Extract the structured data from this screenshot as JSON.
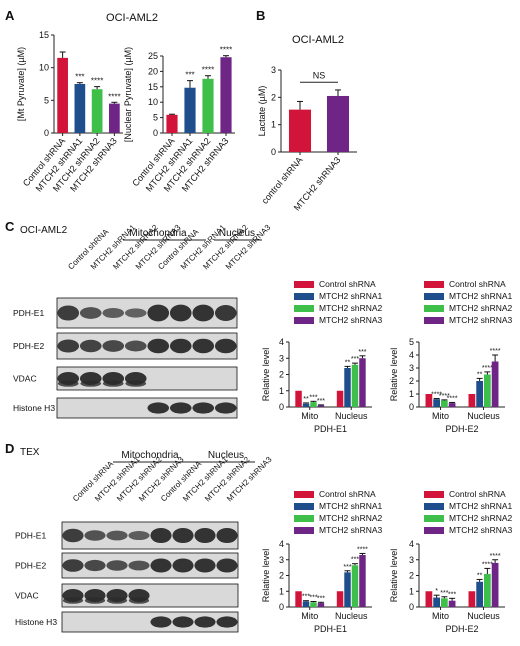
{
  "colors": {
    "control": "#d2143a",
    "sh1": "#1f4e8c",
    "sh2": "#3dbf4a",
    "sh3": "#6e2585",
    "axis": "#222222",
    "blot_bg": "#d9d9d9",
    "band": "#2a2a2a"
  },
  "panels": {
    "A": "A",
    "B": "B",
    "C": "C",
    "D": "D"
  },
  "legend_labels": [
    "Control shRNA",
    "MTCH2 shRNA1",
    "MTCH2 shRNA2",
    "MTCH2 shRNA3"
  ],
  "blots": {
    "C": {
      "cell_line": "OCI-AML2",
      "group_mito": "Mitochondria",
      "group_nuc": "Nucleus",
      "lanes": [
        "Control shRNA",
        "MTCH2 shRNA1",
        "MTCH2 shRNA2",
        "MTCH2 shRNA3",
        "Control shRNA",
        "MTCH2 shRNA1",
        "MTCH2 shRNA2",
        "MTCH2 shRNA3"
      ],
      "rows": [
        "PDH-E1",
        "PDH-E2",
        "VDAC",
        "Histone H3"
      ]
    },
    "D": {
      "cell_line": "TEX",
      "group_mito": "Mitochondria",
      "group_nuc": "Nucleus",
      "lanes": [
        "Control shRNA",
        "MTCH2 shRNA1",
        "MTCH2 shRNA2",
        "MTCH2 shRNA3",
        "Control shRNA",
        "MTCH2 shRNA1",
        "MTCH2 shRNA2",
        "MTCH2 shRNA3"
      ],
      "rows": [
        "PDH-E1",
        "PDH-E2",
        "VDAC",
        "Histone H3"
      ]
    }
  },
  "chart_data": [
    {
      "id": "A1",
      "type": "bar",
      "title": "OCI-AML2",
      "ylabel": "[Mt Pyruvate] (µM)",
      "ylim": [
        0,
        15
      ],
      "yticks": [
        0,
        5,
        10,
        15
      ],
      "categories": [
        "Control shRNA",
        "MTCH2 shRNA1",
        "MTCH2 shRNA2",
        "MTCH2 shRNA3"
      ],
      "values": [
        11.5,
        7.5,
        6.7,
        4.5
      ],
      "errors": [
        0.9,
        0.2,
        0.4,
        0.2
      ],
      "sig": [
        "",
        "***",
        "****",
        "****"
      ]
    },
    {
      "id": "A2",
      "type": "bar",
      "title": "",
      "ylabel": "[Nuclear Pyruvate] (µM)",
      "ylim": [
        0,
        25
      ],
      "yticks": [
        0,
        5,
        10,
        15,
        20,
        25
      ],
      "categories": [
        "Control shRNA",
        "MTCH2 shRNA1",
        "MTCH2 shRNA2",
        "MTCH2 shRNA3"
      ],
      "values": [
        5.9,
        14.7,
        17.6,
        24.6
      ],
      "errors": [
        0.2,
        2.3,
        1.0,
        0.5
      ],
      "sig": [
        "",
        "***",
        "****",
        "****"
      ]
    },
    {
      "id": "B",
      "type": "bar",
      "title": "OCI-AML2",
      "ylabel": "Lactate (µM)",
      "ylim": [
        0,
        3
      ],
      "yticks": [
        0,
        1,
        2,
        3
      ],
      "categories": [
        "control shRNA",
        "MTCH2 shRNA3"
      ],
      "values": [
        1.55,
        2.05
      ],
      "errors": [
        0.3,
        0.22
      ],
      "comparison": "NS"
    },
    {
      "id": "C1",
      "type": "bar",
      "title": "PDH-E1",
      "ylabel": "Relative level",
      "ylim": [
        0,
        4
      ],
      "yticks": [
        0,
        1,
        2,
        3,
        4
      ],
      "categories": [
        "Mito",
        "Nucleus"
      ],
      "series": [
        {
          "name": "Control shRNA",
          "values": [
            1.0,
            1.0
          ]
        },
        {
          "name": "MTCH2 shRNA1",
          "values": [
            0.2,
            2.4
          ]
        },
        {
          "name": "MTCH2 shRNA2",
          "values": [
            0.3,
            2.6
          ]
        },
        {
          "name": "MTCH2 shRNA3",
          "values": [
            0.1,
            3.0
          ]
        }
      ],
      "errors": [
        [
          0,
          0
        ],
        [
          0.05,
          0.1
        ],
        [
          0.05,
          0.1
        ],
        [
          0.03,
          0.15
        ]
      ],
      "sig": [
        [
          "",
          "**",
          "***",
          "***"
        ],
        [
          "",
          "**",
          "***",
          "***"
        ]
      ]
    },
    {
      "id": "C2",
      "type": "bar",
      "title": "PDH-E2",
      "ylabel": "Relative level",
      "ylim": [
        0,
        5
      ],
      "yticks": [
        0,
        1,
        2,
        3,
        4,
        5
      ],
      "categories": [
        "Mito",
        "Nucleus"
      ],
      "series": [
        {
          "name": "Control shRNA",
          "values": [
            1.0,
            1.0
          ]
        },
        {
          "name": "MTCH2 shRNA1",
          "values": [
            0.6,
            2.0
          ]
        },
        {
          "name": "MTCH2 shRNA2",
          "values": [
            0.5,
            2.5
          ]
        },
        {
          "name": "MTCH2 shRNA3",
          "values": [
            0.3,
            3.5
          ]
        }
      ],
      "errors": [
        [
          0,
          0
        ],
        [
          0.05,
          0.2
        ],
        [
          0.05,
          0.2
        ],
        [
          0.05,
          0.5
        ]
      ],
      "sig": [
        [
          "",
          "****",
          "****",
          "****"
        ],
        [
          "",
          "**",
          "****",
          "****"
        ]
      ]
    },
    {
      "id": "D1",
      "type": "bar",
      "title": "PDH-E1",
      "ylabel": "Relative level",
      "ylim": [
        0,
        4
      ],
      "yticks": [
        0,
        1,
        2,
        3,
        4
      ],
      "categories": [
        "Mito",
        "Nucleus"
      ],
      "series": [
        {
          "name": "Control shRNA",
          "values": [
            1.0,
            1.0
          ]
        },
        {
          "name": "MTCH2 shRNA1",
          "values": [
            0.35,
            2.2
          ]
        },
        {
          "name": "MTCH2 shRNA2",
          "values": [
            0.3,
            2.65
          ]
        },
        {
          "name": "MTCH2 shRNA3",
          "values": [
            0.25,
            3.3
          ]
        }
      ],
      "errors": [
        [
          0,
          0
        ],
        [
          0.05,
          0.1
        ],
        [
          0.05,
          0.1
        ],
        [
          0.05,
          0.1
        ]
      ],
      "sig": [
        [
          "",
          "***",
          "***",
          "***"
        ],
        [
          "",
          "***",
          "***",
          "****"
        ]
      ]
    },
    {
      "id": "D2",
      "type": "bar",
      "title": "PDH-E2",
      "ylabel": "Relative level",
      "ylim": [
        0,
        4
      ],
      "yticks": [
        0,
        1,
        2,
        3,
        4
      ],
      "categories": [
        "Mito",
        "Nucleus"
      ],
      "series": [
        {
          "name": "Control shRNA",
          "values": [
            1.0,
            1.0
          ]
        },
        {
          "name": "MTCH2 shRNA1",
          "values": [
            0.6,
            1.6
          ]
        },
        {
          "name": "MTCH2 shRNA2",
          "values": [
            0.55,
            2.1
          ]
        },
        {
          "name": "MTCH2 shRNA3",
          "values": [
            0.4,
            2.8
          ]
        }
      ],
      "errors": [
        [
          0,
          0
        ],
        [
          0.15,
          0.15
        ],
        [
          0.1,
          0.35
        ],
        [
          0.15,
          0.2
        ]
      ],
      "sig": [
        [
          "",
          "*",
          "***",
          "***"
        ],
        [
          "",
          "**",
          "****",
          "****"
        ]
      ]
    }
  ]
}
